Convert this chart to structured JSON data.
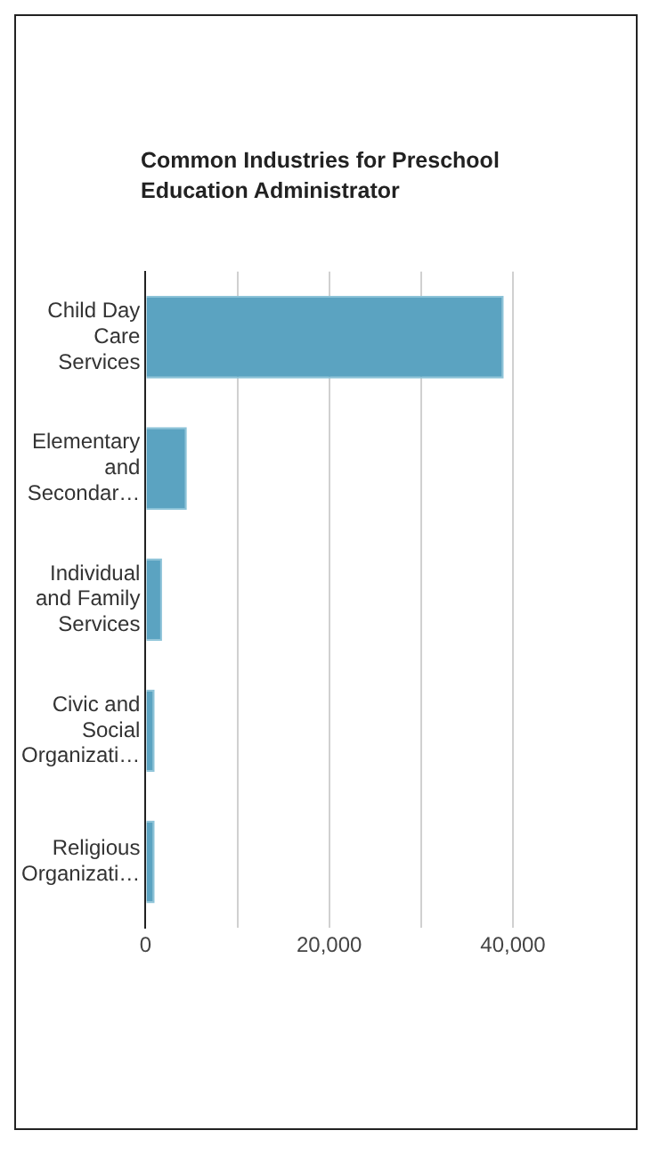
{
  "chart_data": {
    "type": "bar",
    "orientation": "horizontal",
    "title": "Common Industries for Preschool Education Administrator",
    "categories": [
      "Child Day Care Services",
      "Elementary and Secondar…",
      "Individual and Family Services",
      "Civic and Social Organizati…",
      "Religious Organizati…"
    ],
    "values": [
      39000,
      4500,
      1800,
      1000,
      1000
    ],
    "color": "#5ba3c1",
    "xlim": [
      0,
      40000
    ],
    "xticks": [
      0,
      {
        "value": 10000,
        "label": null
      },
      {
        "value": 20000,
        "label": "20,000"
      },
      {
        "value": 30000,
        "label": null
      },
      {
        "value": 40000,
        "label": "40,000"
      }
    ],
    "grid": "x",
    "legend": false
  }
}
